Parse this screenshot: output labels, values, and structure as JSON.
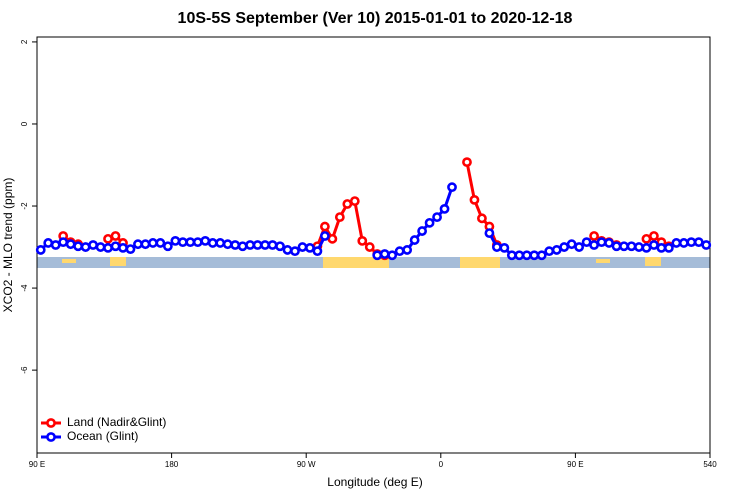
{
  "chart_data": {
    "type": "line",
    "title": "10S-5S September (Ver 10)   2015-01-01 to 2020-12-18",
    "x_label": "Longitude (deg E)",
    "y_label": "XCO2 - MLO trend (ppm)",
    "x": [
      92.5,
      97.5,
      102.5,
      107.5,
      112.5,
      117.5,
      122.5,
      127.5,
      132.5,
      137.5,
      142.5,
      147.5,
      152.5,
      157.5,
      162.5,
      167.5,
      172.5,
      177.5,
      182.5,
      187.5,
      192.5,
      197.5,
      202.5,
      207.5,
      212.5,
      217.5,
      222.5,
      227.5,
      232.5,
      237.5,
      242.5,
      247.5,
      252.5,
      257.5,
      262.5,
      267.5,
      272.5,
      277.5,
      282.5,
      287.5,
      292.5,
      297.5,
      302.5,
      307.5,
      312.5,
      317.5,
      322.5,
      327.5,
      332.5,
      337.5,
      342.5,
      347.5,
      352.5,
      357.5,
      362.5,
      367.5,
      372.5,
      377.5,
      382.5,
      387.5,
      392.5,
      397.5,
      402.5,
      407.5,
      412.5,
      417.5,
      422.5,
      427.5,
      432.5,
      437.5,
      442.5,
      447.5,
      452.5,
      457.5,
      462.5,
      467.5,
      472.5,
      477.5,
      482.5,
      487.5,
      492.5,
      497.5,
      502.5,
      507.5,
      512.5,
      517.5,
      522.5,
      527.5,
      532.5,
      537.5
    ],
    "series": [
      {
        "name": "Land (Nadir&Glint)",
        "color": "#ff0000",
        "values": [
          null,
          null,
          null,
          -2.73,
          -2.88,
          -2.93,
          null,
          null,
          null,
          -2.8,
          -2.73,
          -2.9,
          null,
          null,
          null,
          null,
          null,
          null,
          null,
          null,
          null,
          null,
          null,
          null,
          null,
          null,
          null,
          null,
          null,
          null,
          null,
          null,
          null,
          null,
          null,
          null,
          null,
          -2.98,
          -2.5,
          -2.8,
          -2.27,
          -1.95,
          -1.88,
          -2.85,
          -3.0,
          -3.17,
          -3.2,
          null,
          null,
          null,
          null,
          null,
          null,
          null,
          null,
          null,
          null,
          -0.93,
          -1.85,
          -2.3,
          -2.5,
          -2.95,
          null,
          null,
          null,
          null,
          null,
          null,
          null,
          null,
          null,
          null,
          null,
          null,
          -2.73,
          -2.85,
          -2.88,
          -2.95,
          null,
          null,
          null,
          -2.8,
          -2.73,
          -2.88,
          -2.98,
          null,
          null,
          null,
          null,
          null
        ]
      },
      {
        "name": "Ocean (Glint)",
        "color": "#0000ff",
        "values": [
          -3.07,
          -2.9,
          -2.95,
          -2.88,
          -2.93,
          -2.98,
          -3.0,
          -2.95,
          -3.0,
          -3.02,
          -2.98,
          -3.02,
          -3.05,
          -2.93,
          -2.93,
          -2.9,
          -2.9,
          -2.98,
          -2.85,
          -2.88,
          -2.88,
          -2.88,
          -2.85,
          -2.9,
          -2.9,
          -2.93,
          -2.95,
          -2.98,
          -2.95,
          -2.95,
          -2.95,
          -2.95,
          -2.98,
          -3.07,
          -3.1,
          -3.0,
          -3.02,
          -3.1,
          -2.73,
          null,
          null,
          null,
          null,
          null,
          null,
          -3.2,
          -3.17,
          -3.2,
          -3.1,
          -3.07,
          -2.83,
          -2.61,
          -2.41,
          -2.27,
          -2.07,
          -1.54,
          null,
          null,
          null,
          null,
          -2.66,
          -3.0,
          -3.02,
          -3.2,
          -3.2,
          -3.2,
          -3.2,
          -3.2,
          -3.1,
          -3.07,
          -3.0,
          -2.93,
          -3.0,
          -2.88,
          -2.95,
          -2.88,
          -2.9,
          -2.98,
          -2.98,
          -2.98,
          -3.0,
          -3.02,
          -2.95,
          -3.02,
          -3.02,
          -2.9,
          -2.9,
          -2.88,
          -2.88,
          -2.95
        ]
      }
    ],
    "xlim": [
      90,
      540
    ],
    "xticks": [
      {
        "value": 90,
        "label": "90 E"
      },
      180,
      {
        "value": 270,
        "label": "90 W"
      },
      {
        "value": 360,
        "label": "0"
      },
      {
        "value": 450,
        "label": "90 E"
      },
      540
    ],
    "ylim": [
      -8.02,
      2.12
    ],
    "yticks": [
      2,
      0,
      -2,
      -4,
      -6
    ],
    "legend": "bottom-left"
  }
}
